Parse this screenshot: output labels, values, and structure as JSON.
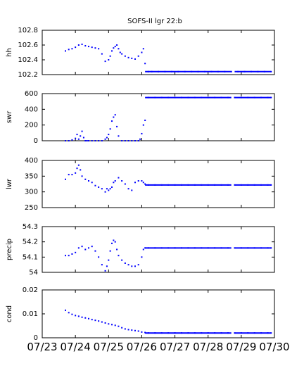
{
  "title": "SOFS-II lgr 22:b",
  "colors": {
    "series": "#0000ff",
    "axes": "#000000"
  },
  "chart_data": [
    {
      "type": "scatter",
      "ylabel": "hh",
      "ylim": [
        102.2,
        102.8
      ],
      "yticks": [
        "102.8",
        "102.6",
        "102.4",
        "102.2"
      ],
      "yticks_values": [
        102.8,
        102.6,
        102.4,
        102.2
      ],
      "xlim": [
        0,
        7
      ],
      "series": [
        {
          "x": [
            0.7,
            0.8,
            0.9,
            1.0,
            1.1,
            1.2,
            1.3,
            1.4,
            1.5,
            1.6,
            1.7,
            1.8,
            1.9,
            2.0,
            2.05,
            2.1,
            2.15,
            2.2,
            2.25,
            2.3,
            2.35,
            2.4,
            2.5,
            2.6,
            2.7,
            2.8,
            2.9,
            3.0,
            3.05,
            3.1,
            3.2,
            3.3,
            3.5,
            3.7,
            3.9,
            4.1,
            4.3,
            4.5,
            4.7,
            4.9,
            5.1,
            5.3,
            5.5,
            5.7,
            5.9,
            6.1,
            6.3,
            6.5,
            6.7,
            6.9
          ],
          "y": [
            102.52,
            102.54,
            102.55,
            102.57,
            102.6,
            102.61,
            102.59,
            102.58,
            102.57,
            102.56,
            102.55,
            102.48,
            102.38,
            102.4,
            102.45,
            102.52,
            102.56,
            102.58,
            102.6,
            102.55,
            102.5,
            102.48,
            102.45,
            102.43,
            102.42,
            102.41,
            102.45,
            102.5,
            102.55,
            102.35,
            102.24,
            102.24,
            102.24,
            102.24,
            102.24,
            102.24,
            102.24,
            102.24,
            102.24,
            102.24,
            102.24,
            102.24,
            102.24,
            102.24,
            102.24,
            102.24,
            102.24,
            102.24,
            102.24,
            102.24
          ]
        }
      ]
    },
    {
      "type": "scatter",
      "ylabel": "swr",
      "ylim": [
        0,
        600
      ],
      "yticks": [
        "600",
        "400",
        "200",
        "0"
      ],
      "yticks_values": [
        600,
        400,
        200,
        0
      ],
      "xlim": [
        0,
        7
      ],
      "series": [
        {
          "x": [
            0.7,
            0.8,
            0.9,
            1.0,
            1.05,
            1.1,
            1.15,
            1.2,
            1.25,
            1.3,
            1.35,
            1.4,
            1.5,
            1.6,
            1.7,
            1.8,
            1.9,
            1.95,
            2.0,
            2.05,
            2.1,
            2.15,
            2.2,
            2.25,
            2.3,
            2.4,
            2.5,
            2.6,
            2.7,
            2.8,
            2.9,
            2.95,
            3.0,
            3.05,
            3.1,
            3.2,
            3.4,
            3.6,
            3.8,
            4.0,
            4.2,
            4.4,
            4.6,
            4.8,
            5.0,
            5.2,
            5.4,
            5.6,
            5.8,
            6.0,
            6.2,
            6.4,
            6.6,
            6.8,
            6.9
          ],
          "y": [
            0,
            0,
            10,
            30,
            80,
            20,
            60,
            120,
            40,
            0,
            0,
            0,
            0,
            0,
            0,
            0,
            20,
            40,
            80,
            150,
            250,
            300,
            330,
            180,
            60,
            0,
            0,
            0,
            0,
            0,
            0,
            20,
            90,
            200,
            260,
            550,
            550,
            550,
            550,
            550,
            550,
            550,
            550,
            550,
            550,
            550,
            550,
            550,
            550,
            550,
            550,
            550,
            550,
            550,
            550
          ]
        }
      ]
    },
    {
      "type": "scatter",
      "ylabel": "lwr",
      "ylim": [
        250,
        400
      ],
      "yticks": [
        "400",
        "350",
        "300",
        "250"
      ],
      "yticks_values": [
        400,
        350,
        300,
        250
      ],
      "xlim": [
        0,
        7
      ],
      "series": [
        {
          "x": [
            0.7,
            0.8,
            0.9,
            1.0,
            1.05,
            1.1,
            1.15,
            1.2,
            1.3,
            1.4,
            1.5,
            1.6,
            1.7,
            1.8,
            1.9,
            1.95,
            2.0,
            2.05,
            2.1,
            2.15,
            2.2,
            2.3,
            2.4,
            2.5,
            2.6,
            2.7,
            2.8,
            2.9,
            3.0,
            3.05,
            3.1,
            3.2,
            3.4,
            3.6,
            3.8,
            4.0,
            4.2,
            4.4,
            4.6,
            4.8,
            5.0,
            5.2,
            5.4,
            5.6,
            5.8,
            6.0,
            6.2,
            6.4,
            6.6,
            6.8,
            6.9
          ],
          "y": [
            340,
            355,
            355,
            360,
            375,
            385,
            370,
            350,
            340,
            335,
            330,
            320,
            315,
            310,
            300,
            310,
            305,
            310,
            315,
            330,
            335,
            345,
            335,
            325,
            310,
            305,
            330,
            335,
            335,
            330,
            325,
            322,
            322,
            322,
            322,
            322,
            322,
            322,
            322,
            322,
            322,
            322,
            322,
            322,
            322,
            322,
            322,
            322,
            322,
            322,
            322
          ]
        }
      ]
    },
    {
      "type": "scatter",
      "ylabel": "precip",
      "ylim": [
        54,
        54.3
      ],
      "yticks": [
        "54.3",
        "54.2",
        "54.1",
        "54"
      ],
      "yticks_values": [
        54.3,
        54.2,
        54.1,
        54.0
      ],
      "xlim": [
        0,
        7
      ],
      "series": [
        {
          "x": [
            0.7,
            0.8,
            0.9,
            1.0,
            1.1,
            1.2,
            1.3,
            1.4,
            1.5,
            1.6,
            1.7,
            1.8,
            1.9,
            1.95,
            2.0,
            2.05,
            2.1,
            2.15,
            2.2,
            2.25,
            2.3,
            2.4,
            2.5,
            2.6,
            2.7,
            2.8,
            2.9,
            3.0,
            3.05,
            3.1,
            3.2,
            3.4,
            3.6,
            3.8,
            4.0,
            4.2,
            4.4,
            4.6,
            4.8,
            5.0,
            5.2,
            5.4,
            5.6,
            5.8,
            6.0,
            6.2,
            6.4,
            6.6,
            6.8,
            6.9
          ],
          "y": [
            54.11,
            54.11,
            54.12,
            54.13,
            54.16,
            54.17,
            54.15,
            54.16,
            54.17,
            54.14,
            54.1,
            54.05,
            54.01,
            54.04,
            54.08,
            54.14,
            54.19,
            54.21,
            54.2,
            54.15,
            54.11,
            54.08,
            54.06,
            54.05,
            54.04,
            54.04,
            54.05,
            54.1,
            54.15,
            54.16,
            54.16,
            54.16,
            54.16,
            54.16,
            54.16,
            54.16,
            54.16,
            54.16,
            54.16,
            54.16,
            54.16,
            54.16,
            54.16,
            54.16,
            54.16,
            54.16,
            54.16,
            54.16,
            54.16,
            54.16
          ]
        }
      ]
    },
    {
      "type": "scatter",
      "ylabel": "cond",
      "ylim": [
        0,
        0.02
      ],
      "yticks": [
        "0.02",
        "0.01",
        "0"
      ],
      "yticks_values": [
        0.02,
        0.01,
        0.0
      ],
      "xlim": [
        0,
        7
      ],
      "xticks": [
        "07/23",
        "07/24",
        "07/25",
        "07/26",
        "07/27",
        "07/28",
        "07/29",
        "07/30"
      ],
      "series": [
        {
          "x": [
            0.7,
            0.8,
            0.9,
            1.0,
            1.1,
            1.2,
            1.3,
            1.4,
            1.5,
            1.6,
            1.7,
            1.8,
            1.9,
            2.0,
            2.1,
            2.2,
            2.3,
            2.4,
            2.5,
            2.6,
            2.7,
            2.8,
            2.9,
            3.0,
            3.1,
            3.2,
            3.4,
            3.6,
            3.8,
            4.0,
            4.2,
            4.4,
            4.6,
            4.8,
            5.0,
            5.2,
            5.4,
            5.6,
            5.8,
            6.0,
            6.2,
            6.4,
            6.6,
            6.8,
            6.9
          ],
          "y": [
            0.0115,
            0.0105,
            0.0098,
            0.0093,
            0.009,
            0.0086,
            0.0083,
            0.008,
            0.0076,
            0.0073,
            0.007,
            0.0066,
            0.0062,
            0.0058,
            0.0055,
            0.0052,
            0.0048,
            0.0042,
            0.0037,
            0.0034,
            0.0032,
            0.003,
            0.0028,
            0.0024,
            0.0022,
            0.002,
            0.002,
            0.002,
            0.002,
            0.002,
            0.002,
            0.002,
            0.002,
            0.002,
            0.002,
            0.002,
            0.002,
            0.002,
            0.002,
            0.002,
            0.002,
            0.002,
            0.002,
            0.002,
            0.002
          ]
        }
      ]
    }
  ]
}
